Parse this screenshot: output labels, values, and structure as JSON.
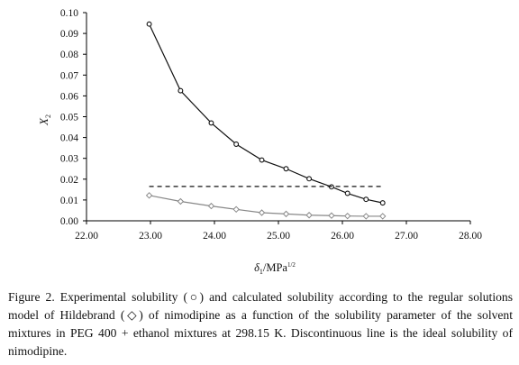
{
  "chart_data": {
    "type": "scatter",
    "xlabel_symbol": "δ",
    "xlabel_sub": "1",
    "xlabel_unit": "/MPa",
    "xlabel_sup": "1/2",
    "ylabel_symbol": "X",
    "ylabel_sub": "2",
    "xlim": [
      22,
      28
    ],
    "ylim": [
      0,
      0.1
    ],
    "xticks": [
      "22.00",
      "23.00",
      "24.00",
      "25.00",
      "26.00",
      "27.00",
      "28.00"
    ],
    "yticks": [
      "0.00",
      "0.01",
      "0.02",
      "0.03",
      "0.04",
      "0.05",
      "0.06",
      "0.07",
      "0.08",
      "0.09",
      "0.10"
    ],
    "grid": false,
    "legend": "none",
    "series": [
      {
        "marker": "circle",
        "line": "solid",
        "color": "#111111",
        "x": [
          22.98,
          23.47,
          23.95,
          24.34,
          24.74,
          25.12,
          25.48,
          25.83,
          26.08,
          26.37,
          26.63
        ],
        "y": [
          0.0945,
          0.0625,
          0.047,
          0.0368,
          0.0292,
          0.025,
          0.0202,
          0.0163,
          0.0132,
          0.0103,
          0.0086
        ]
      },
      {
        "marker": "diamond",
        "line": "solid",
        "color": "#888888",
        "x": [
          22.98,
          23.47,
          23.95,
          24.34,
          24.74,
          25.12,
          25.48,
          25.83,
          26.08,
          26.37,
          26.63
        ],
        "y": [
          0.0122,
          0.0093,
          0.0071,
          0.0055,
          0.0039,
          0.0033,
          0.0027,
          0.0025,
          0.0023,
          0.0022,
          0.0022
        ]
      },
      {
        "marker": "none",
        "line": "dashed",
        "color": "#111111",
        "x": [
          22.98,
          26.63
        ],
        "y": [
          0.0165,
          0.0165
        ]
      }
    ]
  },
  "caption": "Figure 2. Experimental solubility (○) and calculated solubility according to the regular solutions model of Hildebrand (◇) of nimodipine as a function of the solubility parameter of the solvent mixtures in PEG 400 + ethanol mixtures at 298.15 K. Discontinuous line is the ideal solubility of nimodipine."
}
